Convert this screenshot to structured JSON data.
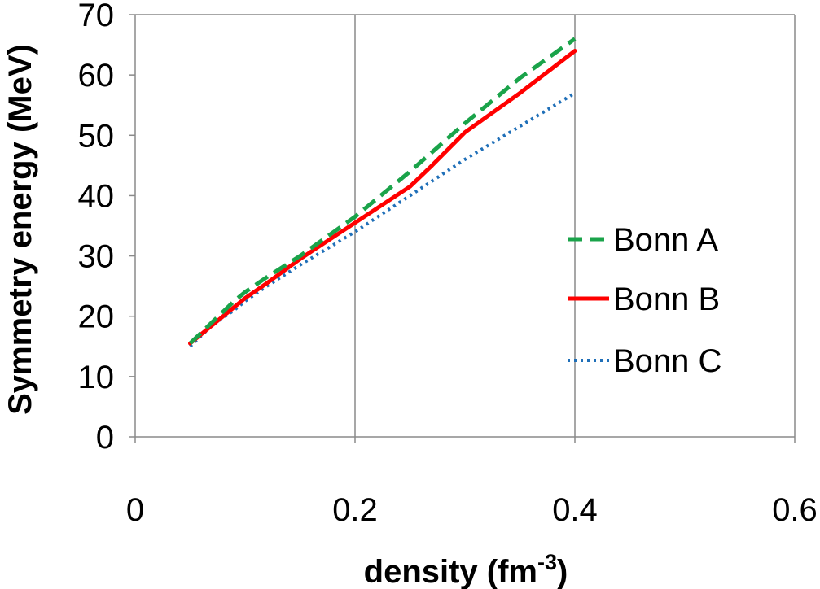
{
  "chart_data": {
    "type": "line",
    "title": "",
    "xlabel_main": "density (fm",
    "xlabel_sup": "-3",
    "xlabel_close": ")",
    "ylabel": "Symmetry energy (MeV)",
    "xlim": [
      0,
      0.6
    ],
    "ylim": [
      0,
      70
    ],
    "x_ticks": [
      "0",
      "0.2",
      "0.4",
      "0.6"
    ],
    "x_tick_values": [
      0,
      0.2,
      0.4,
      0.6
    ],
    "y_ticks": [
      "0",
      "10",
      "20",
      "30",
      "40",
      "50",
      "60",
      "70"
    ],
    "y_tick_values": [
      0,
      10,
      20,
      30,
      40,
      50,
      60,
      70
    ],
    "grid": "vertical-major",
    "legend_position": "right",
    "series": [
      {
        "name": "Bonn A",
        "color": "#1aa34a",
        "style": "dashed",
        "x": [
          0.05,
          0.07,
          0.09,
          0.1,
          0.12,
          0.15,
          0.2,
          0.25,
          0.3,
          0.35,
          0.4
        ],
        "y": [
          15.5,
          19.0,
          22.5,
          24.0,
          26.5,
          30.0,
          36.5,
          44.0,
          52.0,
          59.5,
          66.0
        ]
      },
      {
        "name": "Bonn B",
        "color": "#ff0000",
        "style": "solid",
        "x": [
          0.05,
          0.07,
          0.09,
          0.1,
          0.12,
          0.15,
          0.2,
          0.25,
          0.27,
          0.3,
          0.35,
          0.4
        ],
        "y": [
          15.5,
          18.5,
          21.5,
          23.0,
          25.5,
          29.5,
          35.5,
          41.5,
          45.0,
          50.5,
          57.0,
          64.0
        ]
      },
      {
        "name": "Bonn C",
        "color": "#1f6fb8",
        "style": "dotted",
        "x": [
          0.05,
          0.07,
          0.09,
          0.1,
          0.12,
          0.15,
          0.2,
          0.25,
          0.3,
          0.35,
          0.4
        ],
        "y": [
          15.0,
          18.5,
          21.0,
          22.5,
          25.0,
          28.5,
          34.0,
          40.0,
          46.0,
          51.5,
          57.0
        ]
      }
    ]
  }
}
